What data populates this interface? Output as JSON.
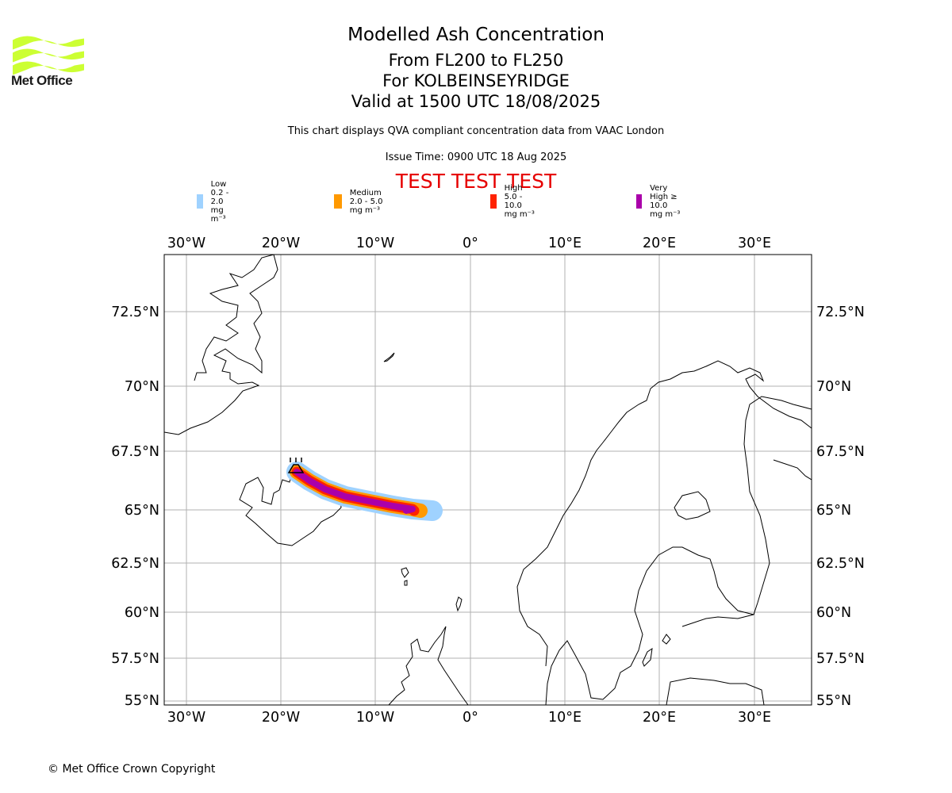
{
  "logo": {
    "text": "Met Office",
    "color": "#ccff33"
  },
  "title": {
    "line1": "Modelled Ash Concentration",
    "line2": "From FL200 to FL250",
    "line3": "For KOLBEINSEYRIDGE",
    "line4": "Valid at 1500 UTC 18/08/2025"
  },
  "subtitle": "This chart displays QVA compliant concentration data from VAAC London",
  "issue_time": "Issue Time: 0900 UTC 18 Aug 2025",
  "test_banner": "TEST TEST TEST",
  "legend": [
    {
      "label": "Low 0.2 - 2.0 mg m⁻³",
      "color": "#9fd2ff"
    },
    {
      "label": "Medium 2.0 - 5.0 mg m⁻³",
      "color": "#ff9900"
    },
    {
      "label": "High 5.0 - 10.0 mg m⁻³",
      "color": "#ff2200"
    },
    {
      "label": "Very High ≥ 10.0 mg m⁻³",
      "color": "#aa00aa"
    }
  ],
  "axes": {
    "lon_labels": [
      "30°W",
      "20°W",
      "10°W",
      "0°",
      "10°E",
      "20°E",
      "30°E"
    ],
    "lat_labels": [
      "72.5°N",
      "70°N",
      "67.5°N",
      "65°N",
      "62.5°N",
      "60°N",
      "57.5°N",
      "55°N"
    ]
  },
  "copyright": "© Met Office Crown Copyright"
}
